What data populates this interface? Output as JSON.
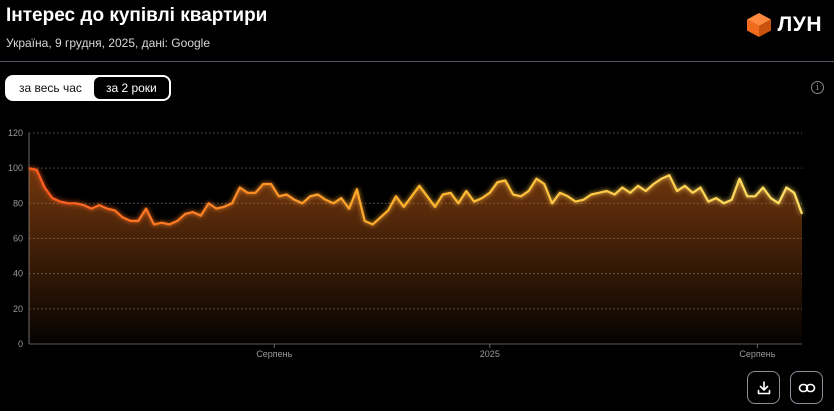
{
  "header": {
    "title": "Інтерес до купівлі квартири",
    "subtitle": "Україна, 9 грудня, 2025, дані: Google"
  },
  "brand": {
    "name": "ЛУН",
    "logo_icon": "orange-cube-icon",
    "color": "#f26b1d"
  },
  "toggle": {
    "all_time": "за весь час",
    "two_years": "за 2 роки",
    "selected": "two_years"
  },
  "toolbar": {
    "info_icon": "info-icon",
    "download_icon": "download-icon",
    "link_icon": "link-icon"
  },
  "chart_data": {
    "type": "area",
    "ylim": [
      0,
      120
    ],
    "yticks": [
      0,
      20,
      40,
      60,
      80,
      100,
      120
    ],
    "grid": true,
    "xlim": [
      0,
      104
    ],
    "xtick_labels": [
      {
        "x": 33,
        "label": "Серпень"
      },
      {
        "x": 62,
        "label": "2025"
      },
      {
        "x": 98,
        "label": "Серпень"
      }
    ],
    "colors": {
      "start": "#ff5a1f",
      "mid": "#ffb52e",
      "end": "#ffe066"
    },
    "values": [
      100,
      99,
      89,
      83,
      81,
      80,
      80,
      79,
      77,
      79,
      77,
      76,
      72,
      70,
      70,
      77,
      68,
      69,
      68,
      70,
      74,
      75,
      73,
      80,
      77,
      78,
      80,
      89,
      86,
      86,
      91,
      91,
      84,
      85,
      82,
      80,
      84,
      85,
      82,
      80,
      83,
      77,
      88,
      70,
      68,
      72,
      76,
      84,
      78,
      84,
      90,
      84,
      78,
      85,
      86,
      80,
      87,
      81,
      83,
      86,
      92,
      93,
      85,
      84,
      87,
      94,
      91,
      80,
      86,
      84,
      81,
      82,
      85,
      86,
      87,
      85,
      89,
      86,
      90,
      87,
      91,
      94,
      96,
      87,
      90,
      86,
      89,
      81,
      83,
      80,
      82,
      94,
      84,
      84,
      89,
      83,
      80,
      89,
      86,
      74
    ]
  }
}
